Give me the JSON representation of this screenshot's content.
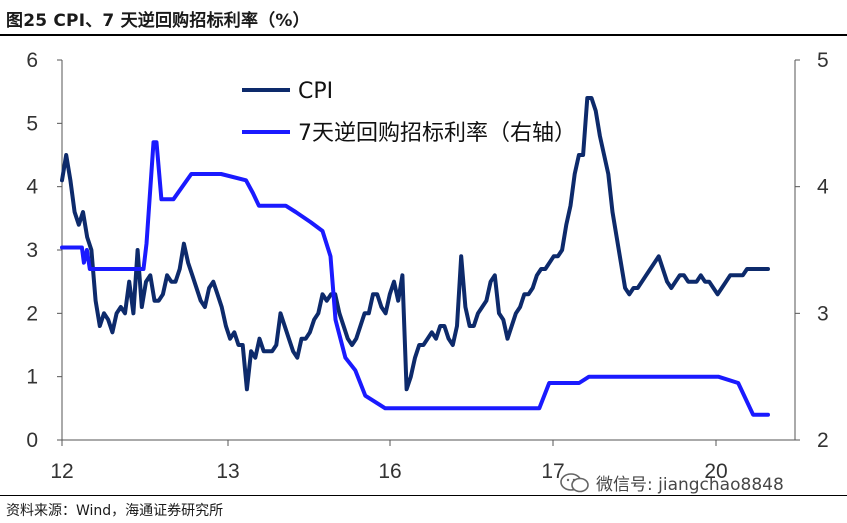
{
  "header": {
    "title": "图25 CPI、7 天逆回购招标利率（%）"
  },
  "footer": {
    "source": "资料来源：Wind，海通证券研究所"
  },
  "watermark": {
    "text": "微信号: jiangchao8848",
    "icon": "wechat-icon"
  },
  "chart_data": {
    "type": "line",
    "title": "图25 CPI、7 天逆回购招标利率（%）",
    "x_ticks": [
      "12",
      "13",
      "16",
      "17",
      "20"
    ],
    "y_left_ticks": [
      "0",
      "1",
      "2",
      "3",
      "4",
      "5",
      "6"
    ],
    "y_right_ticks": [
      "2",
      "3",
      "4",
      "5"
    ],
    "ylim_left": [
      0,
      6
    ],
    "ylim_right": [
      2,
      5
    ],
    "grid": false,
    "legend_position": "top-center",
    "series": [
      {
        "name": "CPI",
        "axis": "left",
        "color": "#0d2a6b",
        "x": [
          12.0,
          12.05,
          12.1,
          12.15,
          12.2,
          12.25,
          12.3,
          12.35,
          12.4,
          12.45,
          12.5,
          12.55,
          12.6,
          12.65,
          12.7,
          12.75,
          12.8,
          12.85,
          12.9,
          12.95,
          13.0,
          13.05,
          13.1,
          13.15,
          13.2,
          13.25,
          13.3,
          13.35,
          13.4,
          13.45,
          13.5,
          13.55,
          13.6,
          13.65,
          13.7,
          13.75,
          13.8,
          13.85,
          13.9,
          13.95,
          14.0,
          14.05,
          14.1,
          14.15,
          14.2,
          14.25,
          14.3,
          14.35,
          14.4,
          14.45,
          14.5,
          14.55,
          14.6,
          14.65,
          14.7,
          14.75,
          14.8,
          14.85,
          14.9,
          14.95,
          15.0,
          15.05,
          15.1,
          15.15,
          15.2,
          15.25,
          15.3,
          15.35,
          15.4,
          15.45,
          15.5,
          15.55,
          15.6,
          15.65,
          15.7,
          15.75,
          15.8,
          15.85,
          15.9,
          15.95,
          16.0,
          16.05,
          16.1,
          16.15,
          16.2,
          16.25,
          16.3,
          16.35,
          16.4,
          16.45,
          16.5,
          16.55,
          16.6,
          16.65,
          16.7,
          16.75,
          16.8,
          16.85,
          16.9,
          16.95,
          17.0,
          17.05,
          17.1,
          17.15,
          17.2,
          17.25,
          17.3,
          17.35,
          17.4,
          17.45,
          17.5,
          17.55,
          17.6,
          17.65,
          17.7,
          17.75,
          17.8,
          17.85,
          17.9,
          17.95,
          18.0,
          18.05,
          18.1,
          18.15,
          18.2,
          18.25,
          18.3,
          18.35,
          18.4,
          18.45,
          18.5,
          18.55,
          18.6,
          18.65,
          18.7,
          18.75,
          18.8,
          18.85,
          18.9,
          18.95,
          19.0,
          19.05,
          19.1,
          19.15,
          19.2,
          19.25,
          19.3,
          19.35,
          19.4,
          19.45,
          19.5,
          19.55,
          19.6,
          19.65,
          19.7,
          19.75,
          19.8,
          19.85,
          19.9,
          19.95,
          20.0,
          20.05,
          20.1,
          20.15,
          20.2,
          20.25,
          20.3,
          20.35,
          20.4
        ],
        "values": [
          4.1,
          4.5,
          4.1,
          3.6,
          3.4,
          3.6,
          3.2,
          3.0,
          2.2,
          1.8,
          2.0,
          1.9,
          1.7,
          2.0,
          2.1,
          2.0,
          2.5,
          2.0,
          3.0,
          2.1,
          2.5,
          2.6,
          2.2,
          2.2,
          2.3,
          2.6,
          2.5,
          2.5,
          2.7,
          3.1,
          2.8,
          2.6,
          2.4,
          2.2,
          2.1,
          2.4,
          2.5,
          2.3,
          2.1,
          1.8,
          1.6,
          1.7,
          1.5,
          1.5,
          0.8,
          1.4,
          1.3,
          1.6,
          1.4,
          1.4,
          1.4,
          1.5,
          2.0,
          1.8,
          1.6,
          1.4,
          1.3,
          1.6,
          1.6,
          1.7,
          1.9,
          2.0,
          2.3,
          2.2,
          2.3,
          2.3,
          2.0,
          1.8,
          1.6,
          1.5,
          1.6,
          1.8,
          2.0,
          2.0,
          2.3,
          2.3,
          2.1,
          2.0,
          2.3,
          2.5,
          2.2,
          2.6,
          0.8,
          1.0,
          1.3,
          1.5,
          1.5,
          1.6,
          1.7,
          1.6,
          1.8,
          1.8,
          1.6,
          1.5,
          1.8,
          2.9,
          2.1,
          1.8,
          1.8,
          2.0,
          2.1,
          2.2,
          2.5,
          2.6,
          2.0,
          1.9,
          1.6,
          1.8,
          2.0,
          2.1,
          2.3,
          2.3,
          2.4,
          2.6,
          2.7,
          2.7,
          2.8,
          2.9,
          2.9,
          3.0,
          3.4,
          3.7,
          4.2,
          4.5,
          4.5,
          5.4,
          5.4,
          5.2,
          4.8,
          4.5,
          4.2,
          3.6,
          3.2,
          2.8,
          2.4,
          2.3,
          2.4,
          2.4,
          2.5,
          2.6,
          2.7,
          2.8,
          2.9,
          2.7,
          2.5,
          2.4,
          2.5,
          2.6,
          2.6,
          2.5,
          2.5,
          2.5,
          2.6,
          2.5,
          2.5,
          2.4,
          2.3,
          2.4,
          2.5,
          2.6,
          2.6,
          2.6,
          2.6,
          2.7,
          2.7,
          2.7,
          2.7,
          2.7,
          2.7
        ]
      },
      {
        "name": "7天逆回购招标利率（右轴）",
        "axis": "right",
        "color": "#1a1aff",
        "x": [
          12.0,
          12.18,
          12.2,
          12.22,
          12.25,
          12.28,
          12.3,
          12.42,
          12.45,
          12.55,
          12.68,
          12.8,
          12.82,
          12.85,
          12.92,
          12.95,
          13.0,
          13.05,
          13.12,
          13.3,
          13.5,
          13.6,
          13.85,
          13.92,
          13.98,
          14.05,
          14.15,
          14.25,
          14.35,
          14.5,
          14.62,
          14.7,
          14.75,
          14.85,
          14.95,
          15.05,
          15.25,
          15.55,
          15.65,
          15.7,
          15.8,
          15.95,
          16.0,
          16.2,
          16.4,
          16.65,
          16.8,
          16.9,
          17.0,
          17.1,
          17.15,
          17.2,
          17.3,
          17.5,
          17.7,
          18.1,
          18.3,
          18.4,
          18.55,
          18.6,
          18.8,
          18.95,
          19.0,
          19.1
        ],
        "values": [
          3.52,
          3.52,
          3.52,
          3.4,
          3.5,
          3.35,
          3.35,
          3.35,
          3.35,
          3.35,
          3.35,
          3.35,
          3.35,
          3.55,
          4.35,
          4.35,
          3.9,
          3.9,
          3.9,
          4.1,
          4.1,
          4.1,
          4.05,
          3.95,
          3.85,
          3.85,
          3.85,
          3.85,
          3.8,
          3.72,
          3.65,
          3.45,
          2.95,
          2.65,
          2.55,
          2.35,
          2.25,
          2.25,
          2.25,
          2.25,
          2.25,
          2.25,
          2.25,
          2.25,
          2.25,
          2.25,
          2.25,
          2.45,
          2.45,
          2.45,
          2.45,
          2.45,
          2.5,
          2.5,
          2.5,
          2.5,
          2.5,
          2.5,
          2.5,
          2.5,
          2.45,
          2.2,
          2.2,
          2.2
        ]
      }
    ]
  }
}
